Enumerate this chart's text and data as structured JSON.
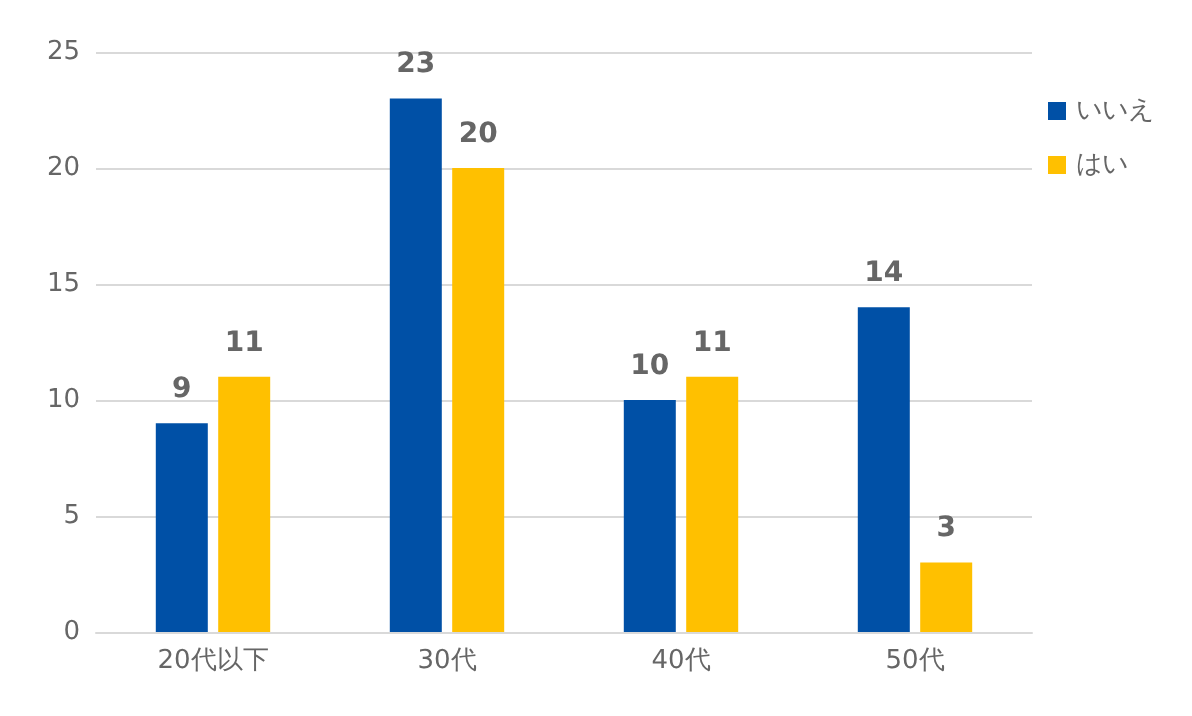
{
  "chart_data": {
    "type": "bar",
    "categories": [
      "20代以下",
      "30代",
      "40代",
      "50代"
    ],
    "series": [
      {
        "name": "いいえ",
        "color": "#0050a6",
        "values": [
          9,
          23,
          10,
          14
        ]
      },
      {
        "name": "はい",
        "color": "#ffc000",
        "values": [
          11,
          20,
          11,
          3
        ]
      }
    ],
    "ylim": [
      0,
      25
    ],
    "yticks": [
      0,
      5,
      10,
      15,
      20,
      25
    ],
    "grid": "y",
    "legend": "right",
    "data_labels": true
  }
}
